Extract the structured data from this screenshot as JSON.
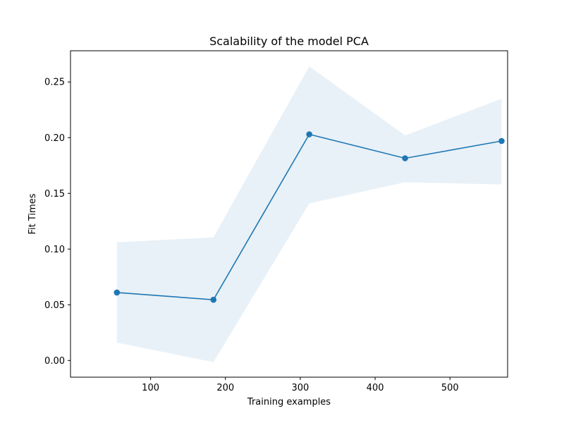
{
  "chart_data": {
    "type": "line",
    "title": "Scalability of the model PCA",
    "xlabel": "Training examples",
    "ylabel": "Fit Times",
    "x": [
      55,
      184,
      312,
      440,
      569
    ],
    "series": [
      {
        "values": [
          0.061,
          0.0545,
          0.203,
          0.1815,
          0.197
        ],
        "lower": [
          0.016,
          -0.0015,
          0.141,
          0.16,
          0.158
        ],
        "upper": [
          0.106,
          0.1105,
          0.264,
          0.202,
          0.235
        ],
        "color": "#1f77b4",
        "band_color": "#1f77b4"
      }
    ],
    "xlim": [
      -7,
      577
    ],
    "ylim": [
      -0.015,
      0.278
    ],
    "xticks": [
      100,
      200,
      300,
      400,
      500
    ],
    "xtick_labels": [
      "100",
      "200",
      "300",
      "400",
      "500"
    ],
    "yticks": [
      0.0,
      0.05,
      0.1,
      0.15,
      0.2,
      0.25
    ],
    "ytick_labels": [
      "0.00",
      "0.05",
      "0.10",
      "0.15",
      "0.20",
      "0.25"
    ],
    "grid": false,
    "legend": "none"
  }
}
